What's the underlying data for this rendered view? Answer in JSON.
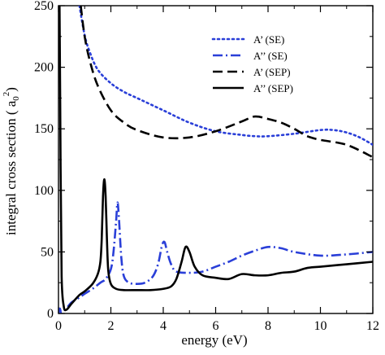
{
  "chart_data": {
    "type": "line",
    "title": "",
    "xlabel": "energy (eV)",
    "ylabel_parts": [
      "integral cross section ( a",
      "0",
      "2",
      ")"
    ],
    "xlim": [
      0,
      12
    ],
    "ylim": [
      0,
      250
    ],
    "x_ticks": [
      0,
      2,
      4,
      6,
      8,
      10,
      12
    ],
    "y_ticks": [
      0,
      50,
      100,
      150,
      200,
      250
    ],
    "grid": false,
    "legend_position": "top-right",
    "series": [
      {
        "name": "A’ (SE)",
        "color": "#2a3fd8",
        "dash": "dotted",
        "x": [
          0.8,
          1.0,
          1.2,
          1.5,
          2.0,
          2.5,
          3.0,
          4.0,
          5.0,
          6.0,
          7.0,
          7.5,
          8.0,
          9.0,
          10.0,
          10.5,
          11.0,
          11.5,
          12.0
        ],
        "y": [
          250,
          226,
          212,
          198,
          187,
          180,
          175,
          165,
          155,
          148,
          145,
          144,
          144,
          146,
          149,
          149,
          147,
          143,
          137
        ]
      },
      {
        "name": "A’’ (SE)",
        "color": "#2a3fd8",
        "dash": "dashdot",
        "x": [
          0.0,
          0.05,
          0.1,
          0.2,
          0.3,
          0.5,
          0.8,
          1.0,
          1.3,
          1.6,
          1.8,
          2.0,
          2.1,
          2.2,
          2.25,
          2.3,
          2.4,
          2.5,
          2.7,
          3.0,
          3.3,
          3.6,
          3.8,
          3.95,
          4.05,
          4.15,
          4.3,
          4.5,
          5.0,
          5.5,
          6.0,
          6.5,
          7.0,
          7.5,
          8.0,
          8.5,
          9.0,
          10.0,
          11.0,
          12.0
        ],
        "y": [
          0,
          4,
          1,
          2,
          4,
          9,
          13,
          16,
          20,
          25,
          28,
          36,
          50,
          75,
          90,
          80,
          45,
          30,
          25,
          24,
          25,
          30,
          40,
          55,
          58,
          50,
          40,
          34,
          33,
          34,
          38,
          42,
          47,
          51,
          54,
          53,
          50,
          47,
          48,
          50
        ]
      },
      {
        "name": "A’ (SEP)",
        "color": "#000000",
        "dash": "dashed",
        "x": [
          0.85,
          1.0,
          1.2,
          1.5,
          2.0,
          2.5,
          3.0,
          4.0,
          5.0,
          6.0,
          7.0,
          7.5,
          8.0,
          8.5,
          9.0,
          9.5,
          10.0,
          11.0,
          12.0
        ],
        "y": [
          250,
          225,
          205,
          185,
          165,
          155,
          149,
          143,
          143,
          148,
          156,
          160,
          158,
          155,
          150,
          144,
          141,
          137,
          127
        ]
      },
      {
        "name": "A’’ (SEP)",
        "color": "#000000",
        "dash": "solid",
        "x": [
          0.0,
          0.04,
          0.08,
          0.12,
          0.2,
          0.3,
          0.5,
          0.8,
          1.0,
          1.3,
          1.5,
          1.6,
          1.65,
          1.7,
          1.75,
          1.8,
          1.85,
          1.9,
          2.0,
          2.2,
          2.5,
          3.0,
          3.5,
          4.0,
          4.3,
          4.5,
          4.7,
          4.85,
          5.0,
          5.2,
          5.5,
          6.0,
          6.5,
          7.0,
          7.5,
          8.0,
          8.5,
          9.0,
          9.5,
          10.0,
          11.0,
          12.0
        ],
        "y": [
          250,
          250,
          120,
          30,
          6,
          3,
          8,
          15,
          18,
          24,
          32,
          42,
          60,
          95,
          109,
          95,
          60,
          35,
          24,
          20,
          19,
          19,
          19,
          20,
          22,
          28,
          42,
          54,
          50,
          38,
          31,
          29,
          28,
          32,
          31,
          31,
          33,
          34,
          37,
          38,
          40,
          42
        ]
      }
    ]
  }
}
